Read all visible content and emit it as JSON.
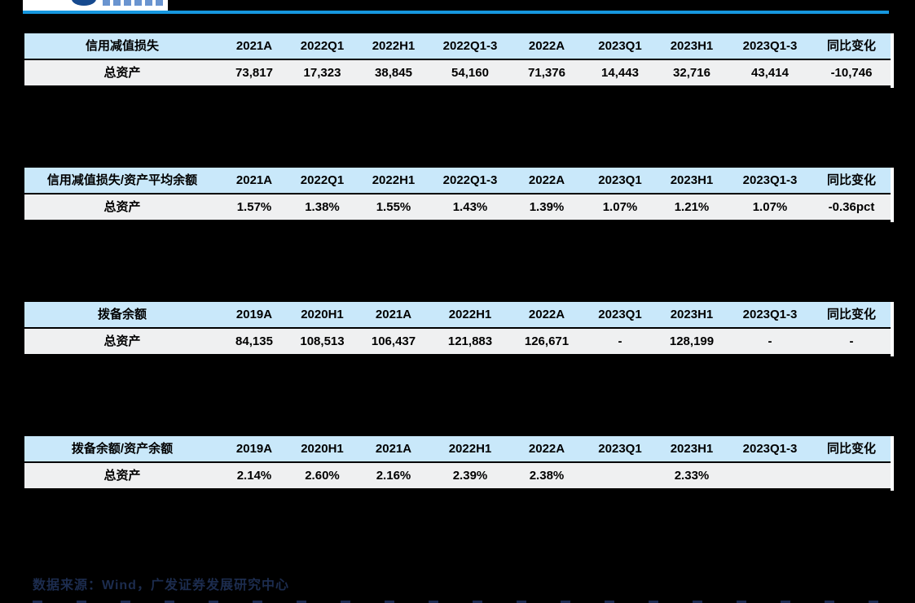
{
  "page": {
    "background_color": "#000000",
    "accent_rule_color": "#1697DE",
    "table_header_color": "#C9E8FA",
    "table_row_color": "#EFF0F1",
    "source_text_color": "#1C2C4E"
  },
  "tables": [
    {
      "title": "信用减值损失",
      "columns": [
        "2021A",
        "2022Q1",
        "2022H1",
        "2022Q1-3",
        "2022A",
        "2023Q1",
        "2023H1",
        "2023Q1-3",
        "同比变化"
      ],
      "rows": [
        {
          "label": "总资产",
          "values": [
            "73,817",
            "17,323",
            "38,845",
            "54,160",
            "71,376",
            "14,443",
            "32,716",
            "43,414",
            "-10,746"
          ]
        }
      ]
    },
    {
      "title": "信用减值损失/资产平均余额",
      "columns": [
        "2021A",
        "2022Q1",
        "2022H1",
        "2022Q1-3",
        "2022A",
        "2023Q1",
        "2023H1",
        "2023Q1-3",
        "同比变化"
      ],
      "rows": [
        {
          "label": "总资产",
          "values": [
            "1.57%",
            "1.38%",
            "1.55%",
            "1.43%",
            "1.39%",
            "1.07%",
            "1.21%",
            "1.07%",
            "-0.36pct"
          ]
        }
      ]
    },
    {
      "title": "拨备余额",
      "columns": [
        "2019A",
        "2020H1",
        "2021A",
        "2022H1",
        "2022A",
        "2023Q1",
        "2023H1",
        "2023Q1-3",
        "同比变化"
      ],
      "rows": [
        {
          "label": "总资产",
          "values": [
            "84,135",
            "108,513",
            "106,437",
            "121,883",
            "126,671",
            "-",
            "128,199",
            "-",
            "-"
          ]
        }
      ]
    },
    {
      "title": "拨备余额/资产余额",
      "columns": [
        "2019A",
        "2020H1",
        "2021A",
        "2022H1",
        "2022A",
        "2023Q1",
        "2023H1",
        "2023Q1-3",
        "同比变化"
      ],
      "rows": [
        {
          "label": "总资产",
          "values": [
            "2.14%",
            "2.60%",
            "2.16%",
            "2.39%",
            "2.38%",
            "",
            "2.33%",
            "",
            ""
          ]
        }
      ]
    }
  ],
  "footer": {
    "source_text": "数据来源：Wind，广发证券发展研究中心"
  }
}
